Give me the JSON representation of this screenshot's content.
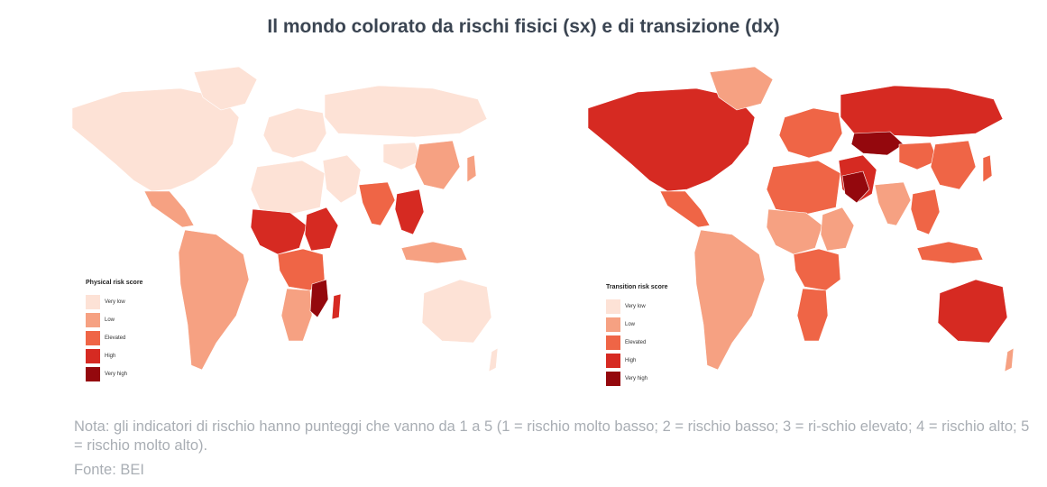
{
  "title": "Il mondo colorato da rischi fisici (sx) e di transizione (dx)",
  "colors": {
    "very_low": "#fde2d6",
    "low": "#f6a182",
    "elevated": "#ef6546",
    "high": "#d62a22",
    "very_high": "#94080d",
    "border": "#ffffff"
  },
  "maps": [
    {
      "id": "physical",
      "legend_title": "Physical risk score",
      "legend": [
        {
          "label": "Very low",
          "level": "very_low"
        },
        {
          "label": "Low",
          "level": "low"
        },
        {
          "label": "Elevated",
          "level": "elevated"
        },
        {
          "label": "High",
          "level": "high"
        },
        {
          "label": "Very high",
          "level": "very_high"
        }
      ],
      "regions": {
        "north_america": "very_low",
        "greenland": "very_low",
        "central_america": "low",
        "south_america": "low",
        "europe": "very_low",
        "russia": "very_low",
        "middle_east": "very_low",
        "north_africa": "very_low",
        "west_africa": "high",
        "central_africa": "elevated",
        "east_africa": "high",
        "southern_africa": "low",
        "mozambique": "very_high",
        "madagascar": "high",
        "china_west": "very_low",
        "china_east": "low",
        "india": "elevated",
        "southeast_asia": "high",
        "indonesia": "low",
        "australia": "very_low",
        "new_zealand": "very_low",
        "japan": "low"
      }
    },
    {
      "id": "transition",
      "legend_title": "Transition risk score",
      "legend": [
        {
          "label": "Very low",
          "level": "very_low"
        },
        {
          "label": "Low",
          "level": "low"
        },
        {
          "label": "Elevated",
          "level": "elevated"
        },
        {
          "label": "High",
          "level": "high"
        },
        {
          "label": "Very high",
          "level": "very_high"
        }
      ],
      "regions": {
        "north_america": "high",
        "greenland": "low",
        "central_america": "elevated",
        "south_america": "low",
        "europe": "elevated",
        "russia": "high",
        "kazakhstan": "very_high",
        "middle_east": "high",
        "saudi_arabia": "very_high",
        "north_africa": "elevated",
        "west_africa": "low",
        "central_africa": "elevated",
        "east_africa": "low",
        "southern_africa": "elevated",
        "china_west": "elevated",
        "china_east": "elevated",
        "india": "low",
        "southeast_asia": "elevated",
        "indonesia": "elevated",
        "australia": "high",
        "new_zealand": "low",
        "japan": "elevated"
      }
    }
  ],
  "note": "Nota: gli indicatori di rischio hanno punteggi che vanno da 1 a 5 (1 = rischio molto basso; 2 = rischio basso; 3 = ri-schio elevato; 4 = rischio alto; 5 = rischio molto alto).",
  "source": "Fonte: BEI"
}
